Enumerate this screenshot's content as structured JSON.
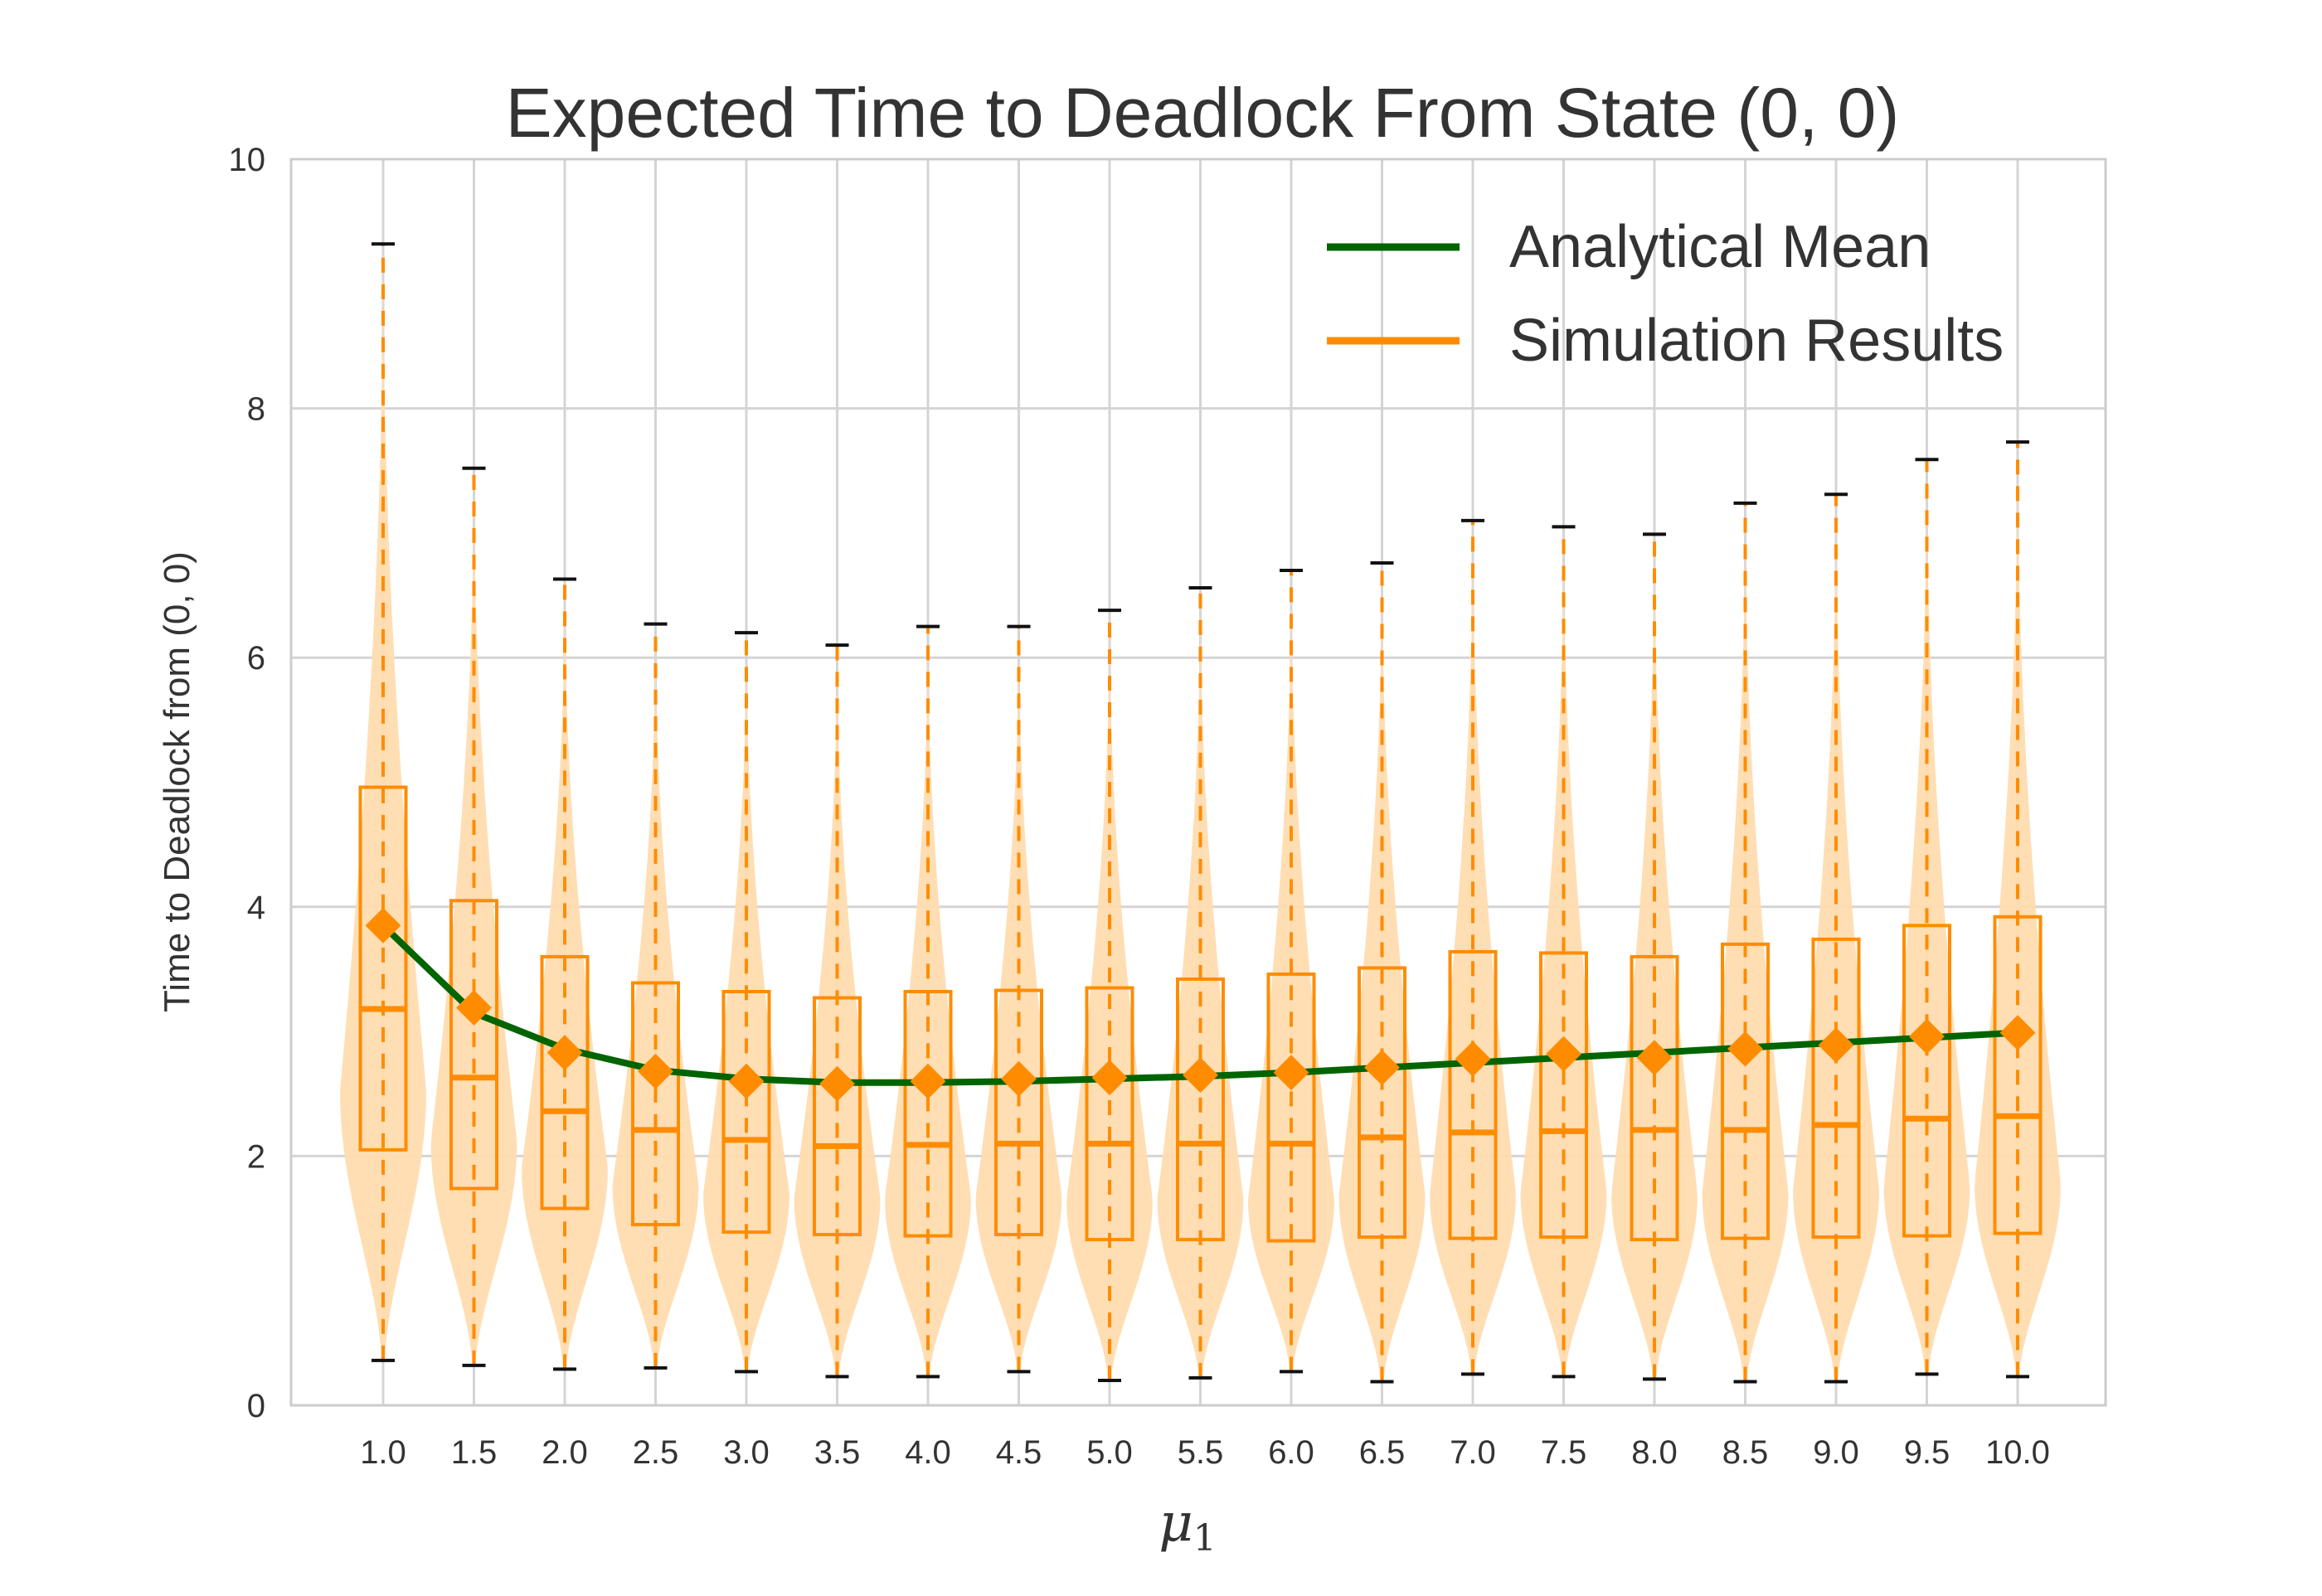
{
  "chart_data": {
    "type": "violin-box-line",
    "title": "Expected Time to Deadlock From State (0, 0)",
    "xlabel_symbol": "μ",
    "xlabel_subscript": "1",
    "ylabel": "Time to Deadlock from (0, 0)",
    "ylim": [
      0,
      10
    ],
    "yticks": [
      "0",
      "2",
      "4",
      "6",
      "8",
      "10"
    ],
    "grid": true,
    "legend_position": "top-right",
    "categories": [
      "1.0",
      "1.5",
      "2.0",
      "2.5",
      "3.0",
      "3.5",
      "4.0",
      "4.5",
      "5.0",
      "5.5",
      "6.0",
      "6.5",
      "7.0",
      "7.5",
      "8.0",
      "8.5",
      "9.0",
      "9.5",
      "10.0"
    ],
    "series": [
      {
        "name": "Analytical Mean",
        "color": "#006400",
        "values": [
          3.85,
          3.15,
          2.86,
          2.69,
          2.62,
          2.59,
          2.59,
          2.6,
          2.62,
          2.64,
          2.67,
          2.71,
          2.75,
          2.79,
          2.83,
          2.87,
          2.91,
          2.95,
          2.99
        ]
      },
      {
        "name": "Simulation Results",
        "color": "#ff8c00",
        "violin_color": "#ffdcb0",
        "mean": [
          3.85,
          3.19,
          2.83,
          2.68,
          2.6,
          2.58,
          2.6,
          2.62,
          2.63,
          2.65,
          2.67,
          2.71,
          2.78,
          2.82,
          2.79,
          2.86,
          2.89,
          2.96,
          2.99
        ],
        "median": [
          3.18,
          2.63,
          2.36,
          2.21,
          2.13,
          2.08,
          2.09,
          2.1,
          2.1,
          2.1,
          2.1,
          2.15,
          2.19,
          2.2,
          2.21,
          2.21,
          2.25,
          2.3,
          2.32
        ],
        "q1": [
          2.05,
          1.74,
          1.58,
          1.45,
          1.39,
          1.37,
          1.36,
          1.37,
          1.33,
          1.33,
          1.32,
          1.35,
          1.34,
          1.35,
          1.33,
          1.34,
          1.35,
          1.36,
          1.38
        ],
        "q3": [
          4.96,
          4.05,
          3.6,
          3.39,
          3.32,
          3.27,
          3.32,
          3.33,
          3.35,
          3.42,
          3.46,
          3.51,
          3.64,
          3.63,
          3.6,
          3.7,
          3.74,
          3.85,
          3.92
        ],
        "min": [
          0.36,
          0.32,
          0.29,
          0.3,
          0.27,
          0.23,
          0.23,
          0.27,
          0.2,
          0.22,
          0.27,
          0.19,
          0.25,
          0.23,
          0.21,
          0.19,
          0.19,
          0.25,
          0.23
        ],
        "max": [
          9.32,
          7.52,
          6.63,
          6.27,
          6.2,
          6.1,
          6.25,
          6.25,
          6.38,
          6.56,
          6.7,
          6.76,
          7.1,
          7.05,
          6.99,
          7.24,
          7.31,
          7.59,
          7.73
        ]
      }
    ]
  }
}
